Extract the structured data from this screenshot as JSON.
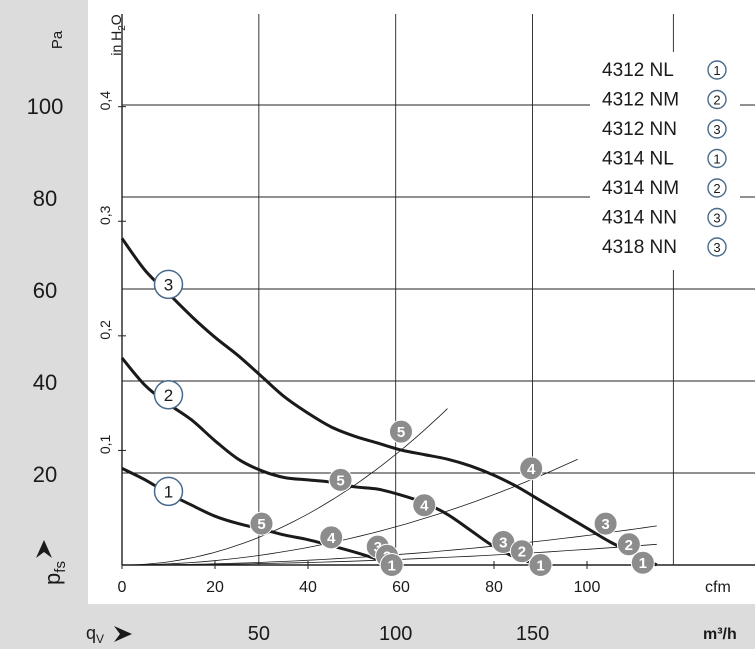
{
  "chart_data": {
    "type": "line",
    "title": "",
    "ylabel": "p_fs",
    "ylabel_main": "p",
    "ylabel_sub": "fs",
    "xlabel": "q_V",
    "xlabel_main": "q",
    "xlabel_sub": "V",
    "units": {
      "y_primary": "Pa",
      "y_secondary_main": "in H",
      "y_secondary_sub": "2",
      "y_secondary_tail": "O",
      "x_primary": "cfm",
      "x_secondary": "m³/h"
    },
    "xlim": [
      0,
      137
    ],
    "ylim": [
      0,
      120
    ],
    "x_ticks_cfm": [
      "0",
      "20",
      "40",
      "60",
      "80",
      "100"
    ],
    "x_ticks_m3h": [
      "50",
      "100",
      "150"
    ],
    "y_ticks_pa": [
      "20",
      "40",
      "60",
      "80",
      "100"
    ],
    "y_ticks_inh2o": [
      "0,1",
      "0,2",
      "0,3",
      "0,4"
    ],
    "grid": true,
    "legend_position": "top-right",
    "legend": [
      {
        "model": "4312 NL",
        "curve": "1"
      },
      {
        "model": "4312 NM",
        "curve": "2"
      },
      {
        "model": "4312 NN",
        "curve": "3"
      },
      {
        "model": "4314 NL",
        "curve": "1"
      },
      {
        "model": "4314 NM",
        "curve": "2"
      },
      {
        "model": "4314 NN",
        "curve": "3"
      },
      {
        "model": "4318 NN",
        "curve": "3"
      }
    ],
    "series": [
      {
        "name": "1",
        "x": [
          0,
          5,
          10,
          15,
          20,
          25,
          30,
          35,
          40,
          45,
          50,
          55,
          58
        ],
        "y": [
          21,
          18.5,
          15.5,
          13,
          10.6,
          9,
          7.8,
          6.5,
          5.5,
          4.2,
          2.8,
          1.2,
          0
        ]
      },
      {
        "name": "2",
        "x": [
          0,
          5,
          10,
          15,
          20,
          25,
          30,
          35,
          40,
          45,
          50,
          55,
          60,
          65,
          70,
          75,
          80,
          85,
          90
        ],
        "y": [
          45,
          39,
          35,
          31.5,
          27,
          23,
          20.5,
          19,
          18.5,
          18,
          17,
          16.5,
          15.2,
          13.5,
          11,
          7.5,
          4,
          1.5,
          0
        ]
      },
      {
        "name": "3",
        "x": [
          0,
          5,
          10,
          15,
          20,
          25,
          30,
          35,
          40,
          45,
          50,
          55,
          60,
          65,
          70,
          75,
          80,
          85,
          90,
          95,
          100,
          105,
          110,
          115
        ],
        "y": [
          71,
          64,
          59,
          54,
          49.5,
          45.5,
          41,
          36.5,
          33,
          30,
          28,
          26.5,
          25,
          24,
          23,
          21.5,
          19.5,
          17,
          14,
          11,
          8,
          5,
          2.5,
          0
        ]
      }
    ],
    "system_curves": [
      {
        "name": "1",
        "end_x": 115,
        "end_y": 4.5
      },
      {
        "name": "2",
        "end_x": 115,
        "end_y": 8.5
      },
      {
        "name": "3",
        "end_x": 98,
        "end_y": 23
      },
      {
        "name": "4",
        "end_x": 70,
        "end_y": 34
      }
    ],
    "markers": [
      {
        "label": "5",
        "series": "1",
        "x": 30,
        "y": 9
      },
      {
        "label": "4",
        "series": "1",
        "x": 45,
        "y": 6
      },
      {
        "label": "3",
        "series": "1",
        "x": 55,
        "y": 4
      },
      {
        "label": "2",
        "series": "1",
        "x": 57,
        "y": 2
      },
      {
        "label": "1",
        "series": "1",
        "x": 58,
        "y": 0
      },
      {
        "label": "5",
        "series": "2",
        "x": 47,
        "y": 18.5
      },
      {
        "label": "4",
        "series": "2",
        "x": 65,
        "y": 13
      },
      {
        "label": "3",
        "series": "2",
        "x": 82,
        "y": 5
      },
      {
        "label": "2",
        "series": "2",
        "x": 86,
        "y": 3
      },
      {
        "label": "1",
        "series": "2",
        "x": 90,
        "y": 0
      },
      {
        "label": "5",
        "series": "3",
        "x": 60,
        "y": 29
      },
      {
        "label": "4",
        "series": "3",
        "x": 88,
        "y": 21
      },
      {
        "label": "3",
        "series": "3",
        "x": 104,
        "y": 9
      },
      {
        "label": "2",
        "series": "3",
        "x": 109,
        "y": 4.5
      },
      {
        "label": "1",
        "series": "3",
        "x": 112,
        "y": 0.5
      }
    ],
    "curve_labels": [
      {
        "label": "1",
        "x": 10,
        "y": 16
      },
      {
        "label": "2",
        "x": 10,
        "y": 37
      },
      {
        "label": "3",
        "x": 10,
        "y": 61
      }
    ],
    "colors": {
      "sidebar": "#dcdcdc",
      "grid": "#222222",
      "curve": "#1a1a1a",
      "marker_fill": "#8c8c8c",
      "label_ring": "#4a6a8a",
      "text": "#1a1a1a"
    }
  }
}
